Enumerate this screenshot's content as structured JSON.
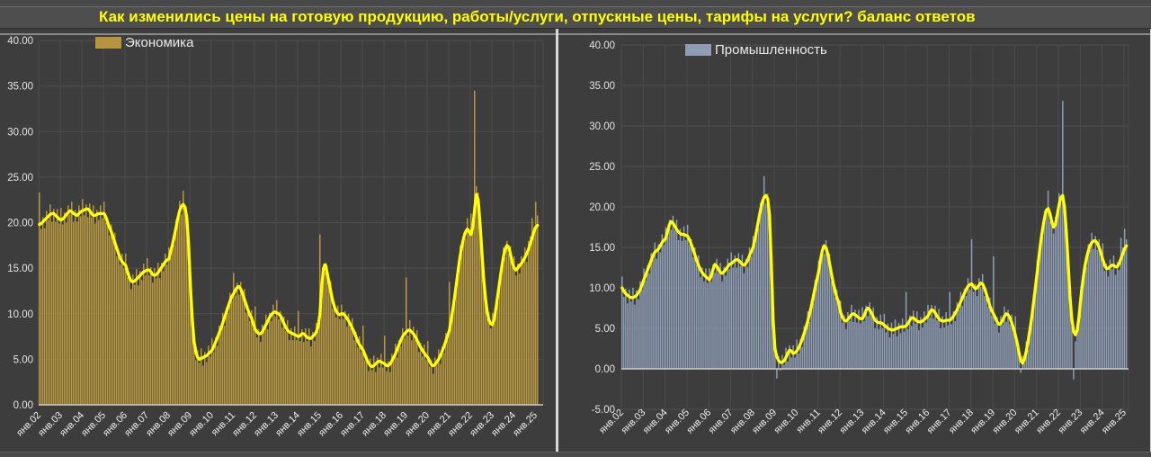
{
  "title": "Как изменились цены на готовую продукцию, работы/услуги, отпускные цены, тарифы на услуги? баланс ответов",
  "colors": {
    "title": "#ffff00",
    "economy_bar": "#b5953e",
    "industry_bar": "#8e9db4",
    "trend_line": "#ffff00",
    "background": "#3d3d3d",
    "gridline": "#4f4f4f",
    "axis_text": "#e3e3e3",
    "baseline": "#cfcfcf"
  },
  "chart_data": [
    {
      "type": "bar",
      "overlay": "line",
      "legend": "Экономика",
      "bar_color": "#b5953e",
      "line_color": "#ffff00",
      "ymin": 0,
      "ymax": 40,
      "y_ticks": [
        "40.00",
        "35.00",
        "30.00",
        "25.00",
        "20.00",
        "15.00",
        "10.00",
        "5.00",
        "0.00"
      ],
      "x_labels": [
        "янв.02",
        "янв.03",
        "янв.04",
        "янв.05",
        "янв.06",
        "янв.07",
        "янв.08",
        "янв.09",
        "янв.10",
        "янв.11",
        "янв.12",
        "янв.13",
        "янв.14",
        "янв.15",
        "янв.16",
        "янв.17",
        "янв.18",
        "янв.19",
        "янв.20",
        "янв.21",
        "янв.22",
        "янв.23",
        "янв.24",
        "янв.25"
      ],
      "x_monthly": {
        "start": "2002-01",
        "end": "2025-02",
        "count": 278
      },
      "bars": [
        23.3,
        19.3,
        20.6,
        19.4,
        21.3,
        20.3,
        22.0,
        20.1,
        21.5,
        20.1,
        21.5,
        19.9,
        21.6,
        19.8,
        21.1,
        20.0,
        21.9,
        20.9,
        22.3,
        20.1,
        21.4,
        20.1,
        21.9,
        20.7,
        22.6,
        20.8,
        22.0,
        20.6,
        22.1,
        20.6,
        21.9,
        19.9,
        21.4,
        20.3,
        21.9,
        20.5,
        22.3,
        20.0,
        20.5,
        18.6,
        19.8,
        18.0,
        18.9,
        16.3,
        17.1,
        15.4,
        16.6,
        15.0,
        16.6,
        14.0,
        14.5,
        12.7,
        14.3,
        13.2,
        14.9,
        13.1,
        14.7,
        13.7,
        15.5,
        14.2,
        16.1,
        14.2,
        15.1,
        13.4,
        15.0,
        13.9,
        15.6,
        13.9,
        15.6,
        14.7,
        16.6,
        15.4,
        17.3,
        16.2,
        18.1,
        17.6,
        20.3,
        20.1,
        22.4,
        20.9,
        23.5,
        21.0,
        19.5,
        15.0,
        13.5,
        8.8,
        7.5,
        4.9,
        6.0,
        4.6,
        6.2,
        4.3,
        5.8,
        4.7,
        6.5,
        5.3,
        7.3,
        5.8,
        7.4,
        6.5,
        8.7,
        8.0,
        10.1,
        8.7,
        10.7,
        10.1,
        12.3,
        11.4,
        14.5,
        12.0,
        13.4,
        12.1,
        13.5,
        11.8,
        12.7,
        10.1,
        10.9,
        9.2,
        10.4,
        8.4,
        10.8,
        7.4,
        8.3,
        6.9,
        8.8,
        8.0,
        9.9,
        8.3,
        10.1,
        9.2,
        11.0,
        9.7,
        11.5,
        9.4,
        10.3,
        8.5,
        9.7,
        8.1,
        9.3,
        7.1,
        8.4,
        7.1,
        8.6,
        7.1,
        10.3,
        7.0,
        8.3,
        6.9,
        8.4,
        7.0,
        8.4,
        6.4,
        8.0,
        7.0,
        9.0,
        8.1,
        18.7,
        12.3,
        15.5,
        14.5,
        15.3,
        13.1,
        13.6,
        10.6,
        11.3,
        9.6,
        10.9,
        9.4,
        11.0,
        9.4,
        10.3,
        8.6,
        10.0,
        8.4,
        9.5,
        7.1,
        8.0,
        6.3,
        7.5,
        5.8,
        8.7,
        4.9,
        5.5,
        3.7,
        5.1,
        3.8,
        5.4,
        3.6,
        5.2,
        4.1,
        5.6,
        4.1,
        7.6,
        3.7,
        4.8,
        3.6,
        5.6,
        4.8,
        6.7,
        5.2,
        7.1,
        6.4,
        8.4,
        7.3,
        14.0,
        7.6,
        9.3,
        7.1,
        8.6,
        7.1,
        8.2,
        5.8,
        6.8,
        5.3,
        6.6,
        4.9,
        7.0,
        4.2,
        4.9,
        3.4,
        5.2,
        4.3,
        6.1,
        4.5,
        6.4,
        5.7,
        7.9,
        7.1,
        13.5,
        8.7,
        11.1,
        11.1,
        14.3,
        14.6,
        17.5,
        16.6,
        18.9,
        18.3,
        20.5,
        19.3,
        21.0,
        19.5,
        34.5,
        24.0,
        23.3,
        19.6,
        18.1,
        13.1,
        12.3,
        9.5,
        10.2,
        8.4,
        10.1,
        8.9,
        11.3,
        11.3,
        14.4,
        14.6,
        17.3,
        16.2,
        18.0,
        16.6,
        17.4,
        15.1,
        16.3,
        14.2,
        15.5,
        14.4,
        16.3,
        15.4,
        17.3,
        15.7,
        18.0,
        18.5,
        20.5,
        19.5,
        22.3,
        20.8
      ],
      "line": [
        19.8,
        19.9,
        20.1,
        20.3,
        20.5,
        20.7,
        20.9,
        21.0,
        21.0,
        20.8,
        20.6,
        20.4,
        20.3,
        20.4,
        20.6,
        20.9,
        21.1,
        21.3,
        21.2,
        21.0,
        20.9,
        20.8,
        21.0,
        21.2,
        21.3,
        21.4,
        21.5,
        21.5,
        21.3,
        21.0,
        20.8,
        20.8,
        20.9,
        21.0,
        21.0,
        21.0,
        21.0,
        20.6,
        20.0,
        19.5,
        19.0,
        18.4,
        17.8,
        17.2,
        16.6,
        16.1,
        15.7,
        15.5,
        15.3,
        14.6,
        14.0,
        13.6,
        13.5,
        13.6,
        13.8,
        14.0,
        14.2,
        14.4,
        14.6,
        14.7,
        14.8,
        14.8,
        14.6,
        14.3,
        14.2,
        14.3,
        14.5,
        14.8,
        15.1,
        15.4,
        15.7,
        15.9,
        16.0,
        16.8,
        17.6,
        18.5,
        19.5,
        20.5,
        21.3,
        21.8,
        22.0,
        21.7,
        20.5,
        17.5,
        13.0,
        9.5,
        7.0,
        5.8,
        5.2,
        5.0,
        5.1,
        5.2,
        5.3,
        5.4,
        5.6,
        5.8,
        6.0,
        6.4,
        6.9,
        7.4,
        7.9,
        8.4,
        9.0,
        9.6,
        10.2,
        10.8,
        11.4,
        11.9,
        12.2,
        12.6,
        12.9,
        13.0,
        12.7,
        12.2,
        11.6,
        11.0,
        10.4,
        9.9,
        9.5,
        8.9,
        8.3,
        8.0,
        7.8,
        7.8,
        8.0,
        8.4,
        8.8,
        9.2,
        9.6,
        9.9,
        10.1,
        10.2,
        10.1,
        10.0,
        9.8,
        9.4,
        8.9,
        8.5,
        8.2,
        8.0,
        7.9,
        7.8,
        7.7,
        7.6,
        7.5,
        7.6,
        7.8,
        7.8,
        7.6,
        7.4,
        7.3,
        7.3,
        7.5,
        7.7,
        8.0,
        8.6,
        10.0,
        13.0,
        15.0,
        15.4,
        14.5,
        13.5,
        12.5,
        11.5,
        10.8,
        10.3,
        10.0,
        9.9,
        10.0,
        10.0,
        9.8,
        9.5,
        9.2,
        8.8,
        8.4,
        8.0,
        7.5,
        7.0,
        6.6,
        6.3,
        6.0,
        5.5,
        5.0,
        4.6,
        4.3,
        4.2,
        4.3,
        4.5,
        4.7,
        4.8,
        4.7,
        4.6,
        4.5,
        4.3,
        4.3,
        4.5,
        4.8,
        5.2,
        5.6,
        6.1,
        6.6,
        7.1,
        7.5,
        7.8,
        8.0,
        8.2,
        8.2,
        8.0,
        7.8,
        7.5,
        7.1,
        6.7,
        6.3,
        6.0,
        5.7,
        5.4,
        5.2,
        4.8,
        4.4,
        4.3,
        4.4,
        4.7,
        5.0,
        5.4,
        5.9,
        6.4,
        7.0,
        7.6,
        8.2,
        9.3,
        10.6,
        12.0,
        13.5,
        15.0,
        16.4,
        17.5,
        18.4,
        19.0,
        19.3,
        19.0,
        18.7,
        19.5,
        21.5,
        23.1,
        22.5,
        20.0,
        17.0,
        14.0,
        11.8,
        10.2,
        9.3,
        8.9,
        8.8,
        9.5,
        10.8,
        12.2,
        13.6,
        15.0,
        16.2,
        17.1,
        17.5,
        17.3,
        16.5,
        15.6,
        15.0,
        14.8,
        15.0,
        15.3,
        15.5,
        15.8,
        16.2,
        16.6,
        17.1,
        17.7,
        18.3,
        19.0,
        19.5,
        19.7
      ]
    },
    {
      "type": "bar",
      "overlay": "line",
      "legend": "Промышленность",
      "bar_color": "#8e9db4",
      "line_color": "#ffff00",
      "ymin": -5,
      "ymax": 40,
      "y_ticks": [
        "40.00",
        "35.00",
        "30.00",
        "25.00",
        "20.00",
        "15.00",
        "10.00",
        "5.00",
        "0.00",
        "-5.00"
      ],
      "x_labels": [
        "янв.02",
        "янв.03",
        "янв.04",
        "янв.05",
        "янв.06",
        "янв.07",
        "янв.08",
        "янв.09",
        "янв.10",
        "янв.11",
        "янв.12",
        "янв.13",
        "янв.14",
        "янв.15",
        "янв.16",
        "янв.17",
        "янв.18",
        "янв.19",
        "янв.20",
        "янв.21",
        "янв.22",
        "янв.23",
        "янв.24",
        "янв.25"
      ],
      "x_monthly": {
        "start": "2002-01",
        "end": "2025-02",
        "count": 278
      },
      "bars": [
        11.4,
        8.9,
        9.9,
        8.1,
        9.8,
        8.3,
        10.0,
        7.9,
        9.7,
        8.6,
        10.8,
        9.8,
        12.4,
        10.9,
        12.8,
        11.8,
        14.3,
        13.5,
        15.6,
        13.6,
        15.4,
        14.4,
        16.6,
        15.3,
        17.5,
        16.3,
        18.4,
        17.2,
        18.9,
        17.1,
        18.4,
        15.9,
        17.3,
        15.8,
        17.6,
        15.9,
        17.8,
        15.3,
        16.0,
        13.8,
        15.0,
        12.9,
        14.0,
        11.3,
        12.5,
        10.8,
        12.4,
        10.6,
        12.4,
        10.8,
        12.9,
        11.9,
        13.6,
        11.8,
        13.1,
        10.8,
        12.6,
        11.5,
        13.6,
        12.3,
        14.4,
        12.5,
        14.0,
        12.5,
        14.3,
        12.7,
        14.1,
        11.8,
        13.6,
        12.6,
        15.0,
        13.9,
        16.4,
        15.3,
        17.8,
        17.4,
        20.5,
        20.1,
        23.8,
        20.4,
        21.6,
        18.2,
        12.0,
        4.5,
        3.9,
        -1.2,
        1.6,
        -0.2,
        1.7,
        0.5,
        2.6,
        0.9,
        2.9,
        1.4,
        2.9,
        1.4,
        3.6,
        1.9,
        3.7,
        2.7,
        5.3,
        4.6,
        7.1,
        5.8,
        8.4,
        8.1,
        11.0,
        10.4,
        13.4,
        12.8,
        15.2,
        14.2,
        15.9,
        13.7,
        14.2,
        10.8,
        11.2,
        8.8,
        9.8,
        7.6,
        8.4,
        5.7,
        6.6,
        4.9,
        7.0,
        5.9,
        7.9,
        5.8,
        7.3,
        5.7,
        7.3,
        5.6,
        7.6,
        5.9,
        7.8,
        6.5,
        8.2,
        6.4,
        7.6,
        5.0,
        6.4,
        4.9,
        6.7,
        5.0,
        6.8,
        4.5,
        5.6,
        3.9,
        5.7,
        4.3,
        6.1,
        4.0,
        5.7,
        4.4,
        6.2,
        4.6,
        9.5,
        4.9,
        6.6,
        5.3,
        7.2,
        5.6,
        7.1,
        4.8,
        6.4,
        5.1,
        7.1,
        5.7,
        7.9,
        6.3,
        7.9,
        6.2,
        7.8,
        6.0,
        7.4,
        5.0,
        6.5,
        5.1,
        7.0,
        5.4,
        9.5,
        5.5,
        7.1,
        5.9,
        8.2,
        7.3,
        9.5,
        7.8,
        9.9,
        9.0,
        11.2,
        9.8,
        16.0,
        9.5,
        10.5,
        9.0,
        11.2,
        10.1,
        11.7,
        9.0,
        9.9,
        7.7,
        8.8,
        6.6,
        13.9,
        5.6,
        6.4,
        4.5,
        6.5,
        5.5,
        7.7,
        5.8,
        7.3,
        5.5,
        6.7,
        4.4,
        6.5,
        2.5,
        2.6,
        -0.5,
        1.6,
        0.7,
        3.4,
        2.4,
        5.4,
        5.6,
        9.2,
        9.4,
        13.4,
        13.3,
        16.4,
        16.3,
        19.5,
        19.1,
        22.0,
        18.2,
        18.8,
        16.7,
        18.8,
        18.4,
        21.7,
        20.5,
        33.1,
        19.0,
        17.9,
        12.5,
        10.2,
        5.2,
        -1.3,
        3.4,
        5.8,
        5.9,
        10.2,
        10.1,
        13.0,
        12.6,
        15.4,
        14.7,
        16.8,
        14.8,
        16.4,
        14.7,
        16.0,
        13.7,
        15.5,
        12.1,
        13.0,
        11.4,
        13.5,
        12.3,
        14.0,
        11.6,
        13.2,
        12.2,
        16.2,
        15.0,
        17.3,
        16.0
      ],
      "line": [
        10.0,
        9.6,
        9.3,
        9.1,
        8.9,
        8.8,
        8.8,
        8.9,
        9.1,
        9.4,
        9.8,
        10.4,
        11.0,
        11.6,
        12.2,
        12.8,
        13.4,
        14.0,
        14.4,
        14.6,
        14.8,
        15.2,
        15.6,
        15.9,
        16.1,
        17.0,
        17.8,
        18.2,
        18.0,
        17.6,
        17.2,
        16.9,
        16.7,
        16.6,
        16.6,
        16.5,
        16.4,
        16.0,
        15.4,
        14.8,
        14.1,
        13.4,
        12.8,
        12.3,
        11.9,
        11.6,
        11.4,
        11.2,
        11.0,
        11.5,
        12.3,
        12.9,
        12.7,
        12.3,
        11.9,
        11.8,
        12.0,
        12.3,
        12.6,
        12.9,
        13.0,
        13.2,
        13.4,
        13.5,
        13.4,
        13.2,
        12.9,
        12.8,
        13.0,
        13.4,
        14.0,
        14.5,
        15.0,
        16.0,
        17.2,
        18.4,
        19.6,
        20.6,
        21.2,
        21.4,
        21.0,
        19.0,
        13.0,
        6.0,
        2.5,
        1.5,
        1.0,
        0.8,
        0.8,
        1.0,
        1.4,
        1.9,
        2.3,
        2.2,
        1.9,
        2.0,
        2.2,
        2.6,
        3.1,
        3.7,
        4.4,
        5.1,
        5.9,
        6.8,
        7.8,
        8.9,
        10.0,
        11.0,
        12.0,
        13.5,
        14.6,
        15.2,
        15.0,
        14.2,
        13.0,
        11.8,
        10.6,
        9.6,
        8.8,
        8.2,
        7.0,
        6.4,
        6.0,
        5.9,
        6.1,
        6.4,
        6.7,
        6.8,
        6.7,
        6.5,
        6.3,
        6.2,
        6.2,
        6.6,
        7.2,
        7.5,
        7.3,
        6.9,
        6.4,
        6.0,
        5.8,
        5.7,
        5.7,
        5.6,
        5.4,
        5.2,
        5.0,
        4.9,
        4.8,
        4.8,
        4.9,
        5.0,
        5.1,
        5.2,
        5.2,
        5.2,
        5.3,
        5.6,
        6.0,
        6.3,
        6.3,
        6.1,
        5.9,
        5.8,
        5.8,
        5.9,
        6.1,
        6.3,
        6.5,
        7.0,
        7.3,
        7.2,
        6.9,
        6.5,
        6.2,
        6.0,
        5.9,
        5.9,
        6.0,
        6.0,
        6.0,
        6.2,
        6.5,
        6.9,
        7.3,
        7.8,
        8.3,
        8.8,
        9.3,
        9.8,
        10.2,
        10.4,
        10.5,
        10.2,
        9.9,
        10.0,
        10.3,
        10.6,
        10.5,
        10.0,
        9.3,
        8.5,
        7.8,
        7.2,
        6.8,
        6.3,
        5.8,
        5.5,
        5.6,
        6.0,
        6.5,
        6.8,
        6.7,
        6.3,
        5.7,
        5.0,
        4.2,
        3.2,
        2.0,
        1.0,
        0.7,
        1.2,
        2.2,
        3.4,
        4.8,
        6.4,
        8.2,
        10.0,
        12.0,
        14.0,
        15.8,
        17.3,
        18.6,
        19.6,
        19.8,
        19.2,
        18.2,
        17.5,
        17.8,
        19.0,
        20.3,
        21.2,
        21.4,
        20.0,
        17.0,
        13.0,
        9.0,
        6.2,
        4.6,
        4.2,
        4.8,
        6.5,
        8.8,
        10.8,
        12.4,
        13.6,
        14.5,
        15.2,
        15.6,
        15.8,
        15.8,
        15.5,
        15.0,
        14.3,
        13.5,
        12.8,
        12.4,
        12.4,
        12.6,
        12.8,
        12.8,
        12.6,
        12.6,
        13.0,
        13.6,
        14.2,
        14.8,
        15.2
      ]
    }
  ]
}
